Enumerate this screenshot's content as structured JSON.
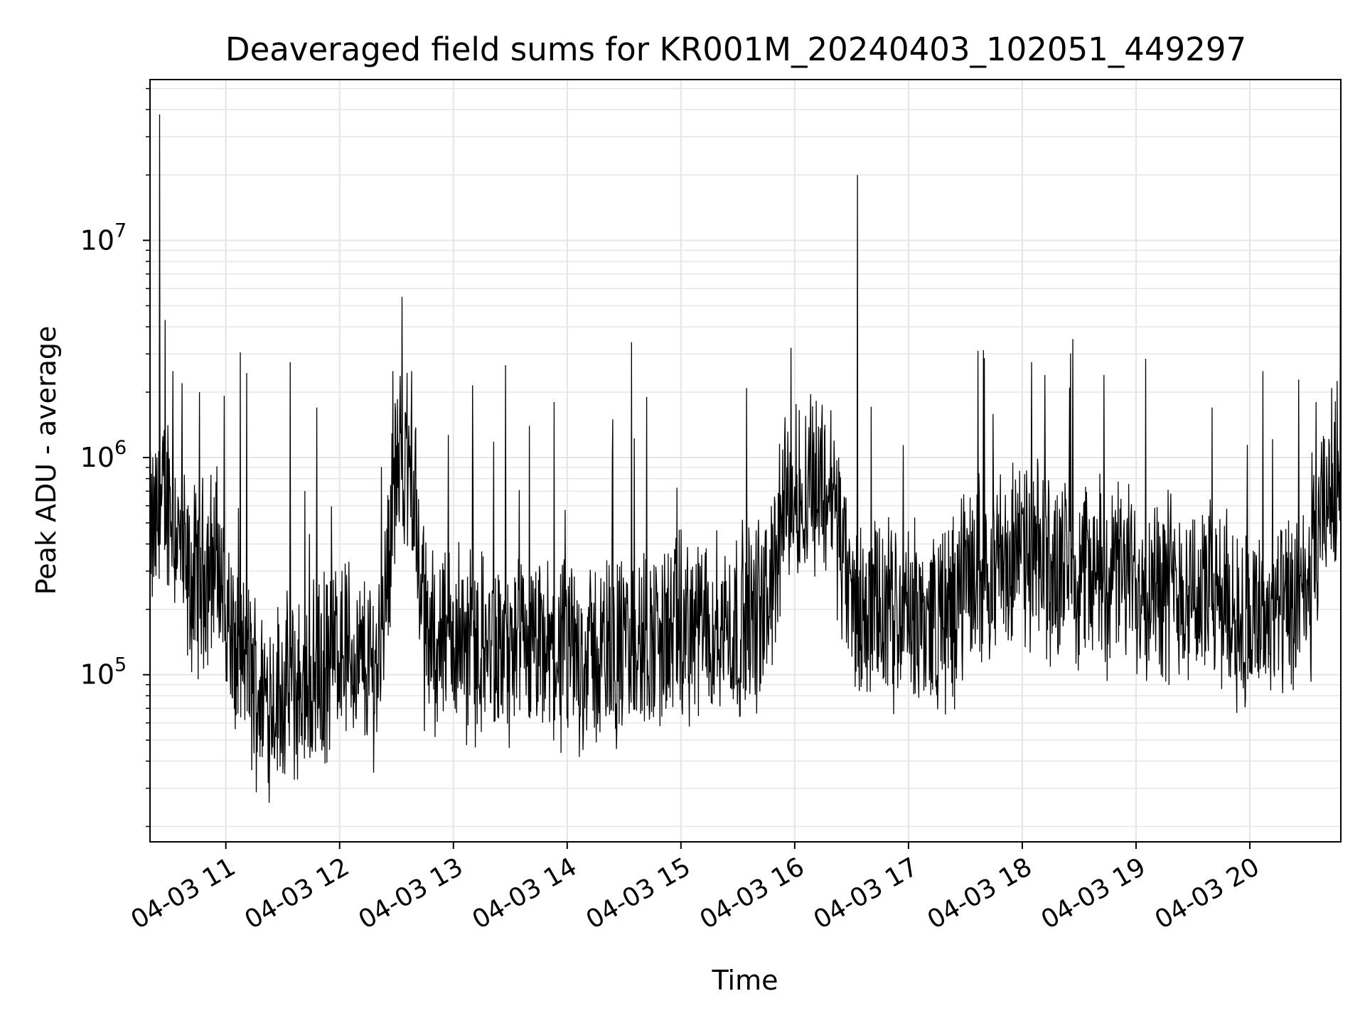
{
  "chart_data": {
    "type": "line",
    "title": "Deaveraged field sums for KR001M_20240403_102051_449297",
    "xlabel": "Time",
    "ylabel": "Peak ADU - average",
    "x_scale": "time",
    "y_scale": "log",
    "xlim": [
      "2024-04-03 10:20",
      "2024-04-03 20:48"
    ],
    "ylim": [
      17000,
      55000000
    ],
    "grid": true,
    "legend": "none",
    "line_color": "#000000",
    "grid_color": "#e5e5e5",
    "x_ticks": [
      {
        "value": "2024-04-03 11:00",
        "label": "04-03 11"
      },
      {
        "value": "2024-04-03 12:00",
        "label": "04-03 12"
      },
      {
        "value": "2024-04-03 13:00",
        "label": "04-03 13"
      },
      {
        "value": "2024-04-03 14:00",
        "label": "04-03 14"
      },
      {
        "value": "2024-04-03 15:00",
        "label": "04-03 15"
      },
      {
        "value": "2024-04-03 16:00",
        "label": "04-03 16"
      },
      {
        "value": "2024-04-03 17:00",
        "label": "04-03 17"
      },
      {
        "value": "2024-04-03 18:00",
        "label": "04-03 18"
      },
      {
        "value": "2024-04-03 19:00",
        "label": "04-03 19"
      },
      {
        "value": "2024-04-03 20:00",
        "label": "04-03 20"
      }
    ],
    "y_ticks": [
      {
        "value": 100000,
        "base": "10",
        "exp": "5"
      },
      {
        "value": 1000000,
        "base": "10",
        "exp": "6"
      },
      {
        "value": 10000000,
        "base": "10",
        "exp": "7"
      }
    ],
    "series": [
      {
        "baseline": [
          {
            "x": "2024-04-03 10:20",
            "y": 400000
          },
          {
            "x": "2024-04-03 10:30",
            "y": 700000
          },
          {
            "x": "2024-04-03 10:40",
            "y": 250000
          },
          {
            "x": "2024-04-03 10:55",
            "y": 350000
          },
          {
            "x": "2024-04-03 11:05",
            "y": 120000
          },
          {
            "x": "2024-04-03 11:20",
            "y": 80000
          },
          {
            "x": "2024-04-03 11:40",
            "y": 85000
          },
          {
            "x": "2024-04-03 11:55",
            "y": 110000
          },
          {
            "x": "2024-04-03 12:00",
            "y": 150000
          },
          {
            "x": "2024-04-03 12:10",
            "y": 110000
          },
          {
            "x": "2024-04-03 12:20",
            "y": 110000
          },
          {
            "x": "2024-04-03 12:30",
            "y": 900000
          },
          {
            "x": "2024-04-03 12:38",
            "y": 900000
          },
          {
            "x": "2024-04-03 12:45",
            "y": 150000
          },
          {
            "x": "2024-04-03 13:00",
            "y": 150000
          },
          {
            "x": "2024-04-03 13:30",
            "y": 120000
          },
          {
            "x": "2024-04-03 14:00",
            "y": 120000
          },
          {
            "x": "2024-04-03 14:30",
            "y": 130000
          },
          {
            "x": "2024-04-03 15:00",
            "y": 160000
          },
          {
            "x": "2024-04-03 15:30",
            "y": 170000
          },
          {
            "x": "2024-04-03 15:45",
            "y": 200000
          },
          {
            "x": "2024-04-03 15:55",
            "y": 600000
          },
          {
            "x": "2024-04-03 16:10",
            "y": 800000
          },
          {
            "x": "2024-04-03 16:20",
            "y": 700000
          },
          {
            "x": "2024-04-03 16:30",
            "y": 200000
          },
          {
            "x": "2024-04-03 17:00",
            "y": 180000
          },
          {
            "x": "2024-04-03 17:20",
            "y": 180000
          },
          {
            "x": "2024-04-03 17:35",
            "y": 300000
          },
          {
            "x": "2024-04-03 18:00",
            "y": 350000
          },
          {
            "x": "2024-04-03 18:30",
            "y": 300000
          },
          {
            "x": "2024-04-03 19:00",
            "y": 280000
          },
          {
            "x": "2024-04-03 19:30",
            "y": 250000
          },
          {
            "x": "2024-04-03 20:00",
            "y": 180000
          },
          {
            "x": "2024-04-03 20:30",
            "y": 200000
          },
          {
            "x": "2024-04-03 20:40",
            "y": 600000
          },
          {
            "x": "2024-04-03 20:48",
            "y": 1000000
          }
        ],
        "spikes": [
          {
            "x": "2024-04-03 10:25",
            "y": 38000000
          },
          {
            "x": "2024-04-03 10:28",
            "y": 4300000
          },
          {
            "x": "2024-04-03 10:32",
            "y": 2500000
          },
          {
            "x": "2024-04-03 10:37",
            "y": 2200000
          },
          {
            "x": "2024-04-03 10:46",
            "y": 2000000
          },
          {
            "x": "2024-04-03 11:11",
            "y": 2450000
          },
          {
            "x": "2024-04-03 11:34",
            "y": 2750000
          },
          {
            "x": "2024-04-03 11:48",
            "y": 1700000
          },
          {
            "x": "2024-04-03 12:28",
            "y": 2500000
          },
          {
            "x": "2024-04-03 12:33",
            "y": 5500000
          },
          {
            "x": "2024-04-03 12:38",
            "y": 2500000
          },
          {
            "x": "2024-04-03 13:10",
            "y": 2150000
          },
          {
            "x": "2024-04-03 13:40",
            "y": 1400000
          },
          {
            "x": "2024-04-03 13:53",
            "y": 1800000
          },
          {
            "x": "2024-04-03 14:24",
            "y": 1500000
          },
          {
            "x": "2024-04-03 14:34",
            "y": 3400000
          },
          {
            "x": "2024-04-03 14:42",
            "y": 1900000
          },
          {
            "x": "2024-04-03 15:58",
            "y": 3200000
          },
          {
            "x": "2024-04-03 16:33",
            "y": 20000000
          },
          {
            "x": "2024-04-03 18:05",
            "y": 2750000
          },
          {
            "x": "2024-04-03 18:12",
            "y": 2400000
          },
          {
            "x": "2024-04-03 18:25",
            "y": 2100000
          },
          {
            "x": "2024-04-03 18:43",
            "y": 2400000
          },
          {
            "x": "2024-04-03 19:05",
            "y": 2850000
          },
          {
            "x": "2024-04-03 19:40",
            "y": 1700000
          },
          {
            "x": "2024-04-03 20:07",
            "y": 2500000
          },
          {
            "x": "2024-04-03 20:35",
            "y": 1800000
          }
        ]
      }
    ]
  }
}
